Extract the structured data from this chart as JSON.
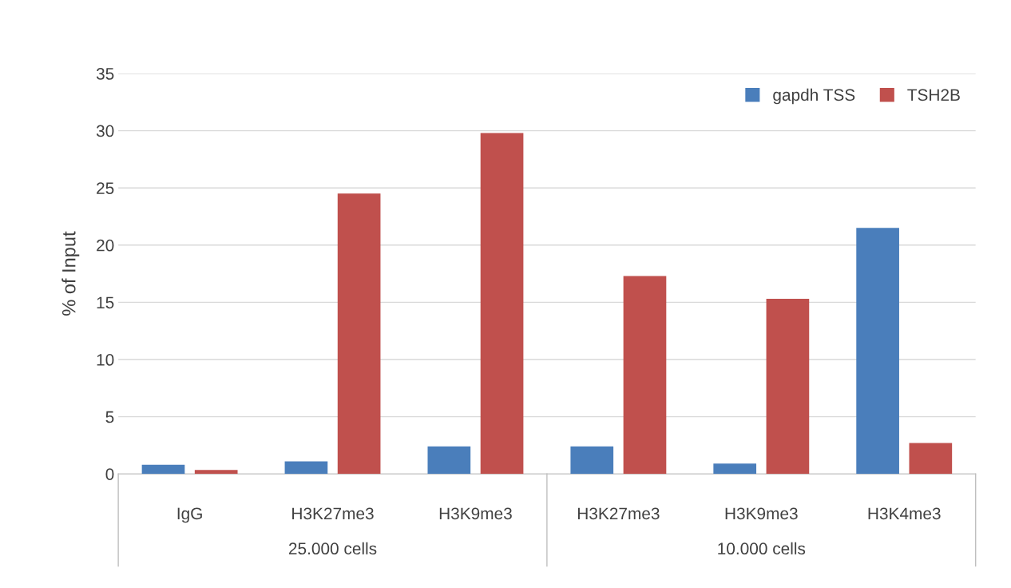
{
  "chart_data": {
    "type": "bar",
    "ylabel": "% of Input",
    "categories": [
      "IgG",
      "H3K27me3",
      "H3K9me3",
      "H3K27me3",
      "H3K9me3",
      "H3K4me3"
    ],
    "series": [
      {
        "name": "gapdh TSS",
        "color": "#4a7ebb",
        "values": [
          0.8,
          1.1,
          2.4,
          2.4,
          0.9,
          21.5
        ]
      },
      {
        "name": "TSH2B",
        "color": "#c0504d",
        "values": [
          0.35,
          24.5,
          29.8,
          17.3,
          15.3,
          2.7
        ]
      }
    ],
    "ylim": [
      0,
      35
    ],
    "yticks": [
      0,
      5,
      10,
      15,
      20,
      25,
      30,
      35
    ],
    "grid": "y",
    "legend": "top right",
    "annotations": [
      "25.000 cells",
      "10.000 cells"
    ]
  }
}
